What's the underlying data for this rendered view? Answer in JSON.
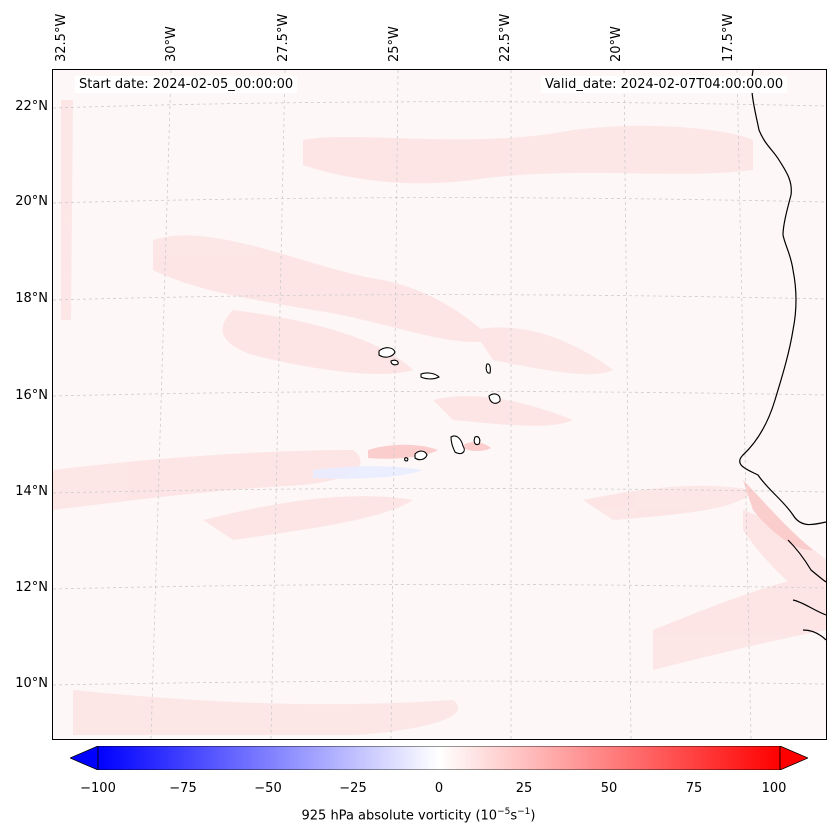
{
  "header": {
    "start_date": "Start date: 2024-02-05_00:00:00",
    "valid_date": "Valid_date: 2024-02-07T04:00:00.00"
  },
  "longitude_labels": [
    "32.5°W",
    "30°W",
    "27.5°W",
    "25°W",
    "22.5°W",
    "20°W",
    "17.5°W"
  ],
  "latitude_labels": [
    "22°N",
    "20°N",
    "18°N",
    "16°N",
    "14°N",
    "12°N",
    "10°N"
  ],
  "colorbar": {
    "label_text": "925 hPa absolute vorticity (10",
    "label_exp1": "−5",
    "label_mid": "s",
    "label_exp2": "−1",
    "label_end": ")",
    "ticks": [
      "−100",
      "−75",
      "−50",
      "−25",
      "0",
      "25",
      "50",
      "75",
      "100"
    ],
    "range": [
      -100,
      100
    ],
    "low_color": "#0000ff",
    "mid_color": "#ffffff",
    "high_color": "#ff0000"
  },
  "map": {
    "background_color": "#fdf7f7",
    "coastline_color": "#000000",
    "grid_color": "#cccccc"
  }
}
